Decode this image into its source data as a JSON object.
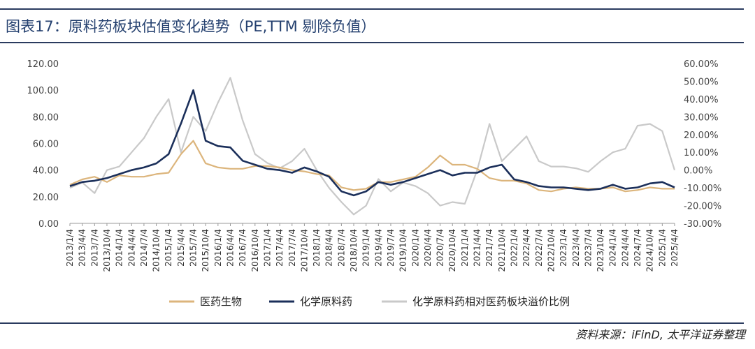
{
  "header": {
    "title": "图表17：原料药板块估值变化趋势（PE,TTM 剔除负值）"
  },
  "footer": {
    "source": "资料来源：iFinD, 太平洋证券整理"
  },
  "colors": {
    "yiyao": "#dcb57c",
    "huaxue": "#1b2f5a",
    "premium": "#c9c9c9",
    "rule": "#2a3b5f"
  },
  "chart_data": {
    "type": "line",
    "title": "原料药板块估值变化趋势（PE,TTM 剔除负值）",
    "left_axis": {
      "ylim": [
        0,
        120
      ],
      "ticks": [
        "0.00",
        "20.00",
        "40.00",
        "60.00",
        "80.00",
        "100.00",
        "120.00"
      ]
    },
    "right_axis": {
      "ylim": [
        -30,
        60
      ],
      "ticks": [
        "-30.00%",
        "-20.00%",
        "-10.00%",
        "0.00%",
        "10.00%",
        "20.00%",
        "30.00%",
        "40.00%",
        "50.00%",
        "60.00%"
      ]
    },
    "categories": [
      "2013/1/4",
      "2013/4/4",
      "2013/7/4",
      "2013/10/4",
      "2014/1/4",
      "2014/4/4",
      "2014/7/4",
      "2014/10/4",
      "2015/1/4",
      "2015/4/4",
      "2015/7/4",
      "2015/10/4",
      "2016/1/4",
      "2016/4/4",
      "2016/7/4",
      "2016/10/4",
      "2017/1/4",
      "2017/4/4",
      "2017/7/4",
      "2017/10/4",
      "2018/1/4",
      "2018/4/4",
      "2018/7/4",
      "2018/10/4",
      "2019/1/4",
      "2019/4/4",
      "2019/7/4",
      "2019/10/4",
      "2020/1/4",
      "2020/4/4",
      "2020/7/4",
      "2020/10/4",
      "2021/1/4",
      "2021/4/4",
      "2021/7/4",
      "2021/10/4",
      "2022/1/4",
      "2022/4/4",
      "2022/7/4",
      "2022/10/4",
      "2023/1/4",
      "2023/4/4",
      "2023/7/4",
      "2023/10/4",
      "2024/1/4",
      "2024/4/4",
      "2024/7/4",
      "2024/10/4",
      "2025/1/4",
      "2025/4/4"
    ],
    "series": [
      {
        "name": "医药生物",
        "axis": "left",
        "color": "#dcb57c",
        "values": [
          29,
          33,
          35,
          31,
          36,
          35,
          35,
          37,
          38,
          52,
          62,
          45,
          42,
          41,
          41,
          43,
          43,
          42,
          40,
          39,
          37,
          36,
          27,
          25,
          26,
          31,
          31,
          33,
          35,
          42,
          51,
          44,
          44,
          41,
          34,
          32,
          32,
          30,
          25,
          24,
          26,
          27,
          26,
          26,
          27,
          24,
          25,
          27,
          26,
          26
        ]
      },
      {
        "name": "化学原料药",
        "axis": "left",
        "color": "#1b2f5a",
        "values": [
          28,
          31,
          32,
          34,
          37,
          40,
          42,
          45,
          52,
          75,
          100,
          62,
          58,
          57,
          47,
          44,
          41,
          40,
          38,
          42,
          39,
          35,
          24,
          21,
          24,
          31,
          29,
          31,
          34,
          37,
          40,
          36,
          38,
          38,
          42,
          44,
          33,
          31,
          28,
          27,
          27,
          26,
          25,
          26,
          29,
          26,
          27,
          30,
          31,
          27
        ]
      },
      {
        "name": "化学原料药相对医药板块溢价比例",
        "axis": "right",
        "color": "#c9c9c9",
        "values": [
          -10,
          -7,
          -13,
          0,
          2,
          10,
          18,
          30,
          40,
          10,
          30,
          22,
          38,
          52,
          28,
          9,
          4,
          1,
          5,
          12,
          0,
          -10,
          -18,
          -25,
          -20,
          -5,
          -12,
          -7,
          -9,
          -13,
          -20,
          -18,
          -19,
          0,
          26,
          5,
          12,
          19,
          5,
          2,
          2,
          1,
          -1,
          5,
          10,
          12,
          25,
          26,
          22,
          0
        ]
      }
    ]
  }
}
